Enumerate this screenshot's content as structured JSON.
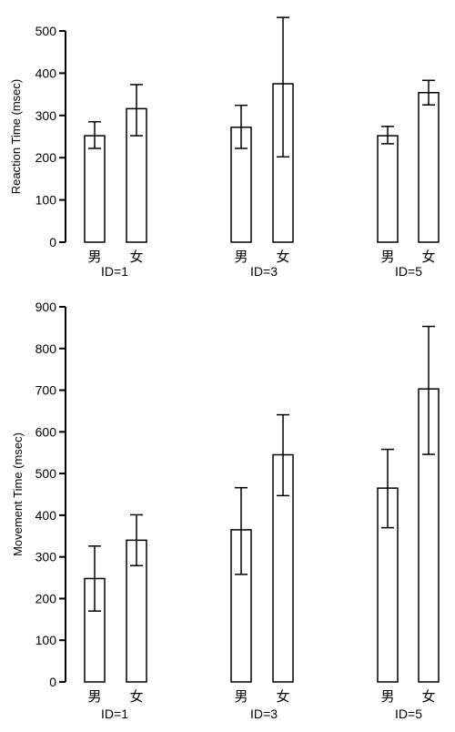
{
  "chart_data": [
    {
      "type": "bar",
      "ylabel": "Reaction Time (msec)",
      "ylim": [
        0,
        500
      ],
      "yticks": [
        0,
        100,
        200,
        300,
        400,
        500
      ],
      "groups": [
        {
          "label": "ID=1",
          "bars": [
            {
              "category": "男",
              "value": 252,
              "err_low": 222,
              "err_high": 285
            },
            {
              "category": "女",
              "value": 316,
              "err_low": 252,
              "err_high": 373
            }
          ]
        },
        {
          "label": "ID=3",
          "bars": [
            {
              "category": "男",
              "value": 272,
              "err_low": 222,
              "err_high": 324
            },
            {
              "category": "女",
              "value": 375,
              "err_low": 202,
              "err_high": 532
            }
          ]
        },
        {
          "label": "ID=5",
          "bars": [
            {
              "category": "男",
              "value": 252,
              "err_low": 233,
              "err_high": 274
            },
            {
              "category": "女",
              "value": 354,
              "err_low": 325,
              "err_high": 383
            }
          ]
        }
      ]
    },
    {
      "type": "bar",
      "ylabel": "Movement Time (msec)",
      "ylim": [
        0,
        900
      ],
      "yticks": [
        0,
        100,
        200,
        300,
        400,
        500,
        600,
        700,
        800,
        900
      ],
      "groups": [
        {
          "label": "ID=1",
          "bars": [
            {
              "category": "男",
              "value": 248,
              "err_low": 170,
              "err_high": 326
            },
            {
              "category": "女",
              "value": 340,
              "err_low": 279,
              "err_high": 401
            }
          ]
        },
        {
          "label": "ID=3",
          "bars": [
            {
              "category": "男",
              "value": 365,
              "err_low": 258,
              "err_high": 466
            },
            {
              "category": "女",
              "value": 545,
              "err_low": 447,
              "err_high": 641
            }
          ]
        },
        {
          "label": "ID=5",
          "bars": [
            {
              "category": "男",
              "value": 465,
              "err_low": 370,
              "err_high": 558
            },
            {
              "category": "女",
              "value": 703,
              "err_low": 546,
              "err_high": 853
            }
          ]
        }
      ]
    }
  ]
}
